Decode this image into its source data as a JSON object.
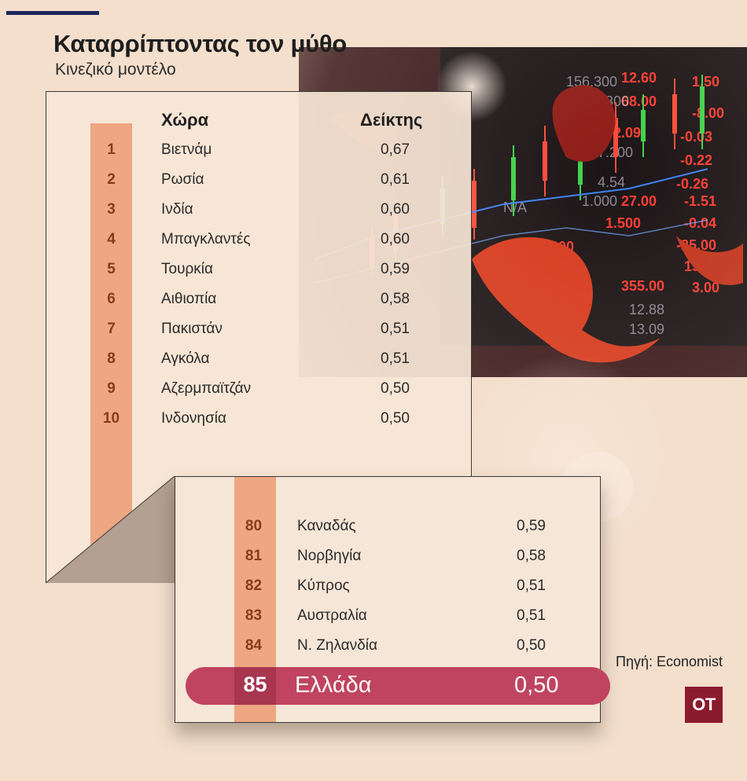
{
  "title": "Καταρρίπτοντας τον μύθο",
  "subtitle": "Κινεζικό μοντέλο",
  "table": {
    "col_country": "Χώρα",
    "col_index": "Δείκτης",
    "top": [
      {
        "rank": "1",
        "country": "Βιετνάμ",
        "value": "0,67"
      },
      {
        "rank": "2",
        "country": "Ρωσία",
        "value": "0,61"
      },
      {
        "rank": "3",
        "country": "Ινδία",
        "value": "0,60"
      },
      {
        "rank": "4",
        "country": "Μπαγκλαντές",
        "value": "0,60"
      },
      {
        "rank": "5",
        "country": "Τουρκία",
        "value": "0,59"
      },
      {
        "rank": "6",
        "country": "Αιθιοπία",
        "value": "0,58"
      },
      {
        "rank": "7",
        "country": "Πακιστάν",
        "value": "0,51"
      },
      {
        "rank": "8",
        "country": "Αγκόλα",
        "value": "0,51"
      },
      {
        "rank": "9",
        "country": "Αζερμπαϊτζάν",
        "value": "0,50"
      },
      {
        "rank": "10",
        "country": "Ινδονησία",
        "value": "0,50"
      }
    ],
    "bottom": [
      {
        "rank": "80",
        "country": "Καναδάς",
        "value": "0,59"
      },
      {
        "rank": "81",
        "country": "Νορβηγία",
        "value": "0,58"
      },
      {
        "rank": "82",
        "country": "Κύπρος",
        "value": "0,51"
      },
      {
        "rank": "83",
        "country": "Αυστραλία",
        "value": "0,51"
      },
      {
        "rank": "84",
        "country": "Ν. Ζηλανδία",
        "value": "0,50"
      }
    ],
    "highlight": {
      "rank": "85",
      "country": "Ελλάδα",
      "value": "0,50"
    }
  },
  "chart_data": {
    "type": "table",
    "title": "Καταρρίπτοντας τον μύθο",
    "subtitle": "Κινεζικό μοντέλο",
    "columns": [
      "",
      "Χώρα",
      "Δείκτης"
    ],
    "rows": [
      [
        "1",
        "Βιετνάμ",
        "0,67"
      ],
      [
        "2",
        "Ρωσία",
        "0,61"
      ],
      [
        "3",
        "Ινδία",
        "0,60"
      ],
      [
        "4",
        "Μπαγκλαντές",
        "0,60"
      ],
      [
        "5",
        "Τουρκία",
        "0,59"
      ],
      [
        "6",
        "Αιθιοπία",
        "0,58"
      ],
      [
        "7",
        "Πακιστάν",
        "0,51"
      ],
      [
        "8",
        "Αγκόλα",
        "0,51"
      ],
      [
        "9",
        "Αζερμπαϊτζάν",
        "0,50"
      ],
      [
        "10",
        "Ινδονησία",
        "0,50"
      ],
      [
        "80",
        "Καναδάς",
        "0,59"
      ],
      [
        "81",
        "Νορβηγία",
        "0,58"
      ],
      [
        "82",
        "Κύπρος",
        "0,51"
      ],
      [
        "83",
        "Αυστραλία",
        "0,51"
      ],
      [
        "84",
        "Ν. Ζηλανδία",
        "0,50"
      ],
      [
        "85",
        "Ελλάδα",
        "0,50"
      ]
    ],
    "highlight_row": "85",
    "source": "Πηγή: Economist"
  },
  "source": "Πηγή: Economist",
  "logo": "OT",
  "colors": {
    "background": "#f3dfcc",
    "rank_strip": "#eea683",
    "highlight": "#c0445f",
    "logo": "#8b1a2e",
    "top_rule": "#1c2a5c"
  },
  "background_art": [
    "candlestick-chart",
    "dragon-silhouette",
    "stock-ticker-board"
  ]
}
